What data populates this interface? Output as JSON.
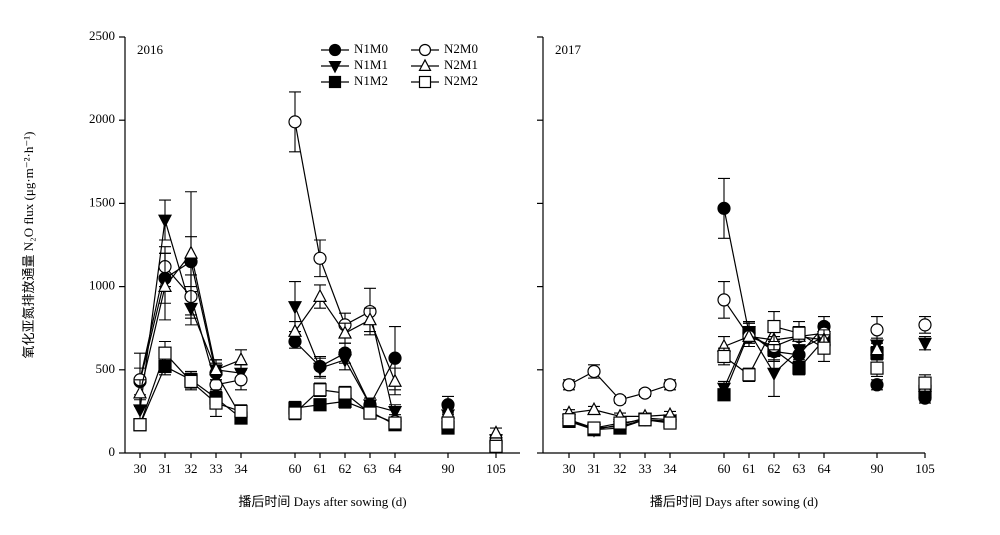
{
  "chart_data": [
    {
      "type": "line",
      "title": "2016",
      "x_label": "播后时间 Days after sowing (d)",
      "y_label": "氧化亚氮排放通量 N₂O flux (μg·m⁻²·h⁻¹)",
      "categories": [
        "30",
        "31",
        "32",
        "33",
        "34",
        "60",
        "61",
        "62",
        "63",
        "64",
        "90",
        "105"
      ],
      "ylim": [
        0,
        2500
      ],
      "yticks": [
        0,
        500,
        1000,
        1500,
        2000,
        2500
      ],
      "legend": "top",
      "series": [
        {
          "name": "N1M0",
          "color": "#000",
          "marker": "circle",
          "filled": true,
          "values": [
            430,
            1050,
            1150,
            480,
            220,
            670,
            520,
            600,
            290,
            570,
            290,
            60
          ],
          "errors": [
            80,
            150,
            150,
            60,
            30,
            40,
            60,
            60,
            40,
            190,
            50,
            30
          ]
        },
        {
          "name": "N1M1",
          "color": "#000",
          "marker": "triangle-down",
          "filled": true,
          "values": [
            260,
            1400,
            870,
            500,
            480,
            880,
            510,
            560,
            290,
            250,
            230,
            80
          ],
          "errors": [
            60,
            120,
            100,
            60,
            50,
            150,
            60,
            60,
            40,
            40,
            40,
            30
          ]
        },
        {
          "name": "N1M2",
          "color": "#000",
          "marker": "square",
          "filled": true,
          "values": [
            170,
            520,
            440,
            330,
            210,
            270,
            290,
            310,
            250,
            170,
            150,
            40
          ],
          "errors": [
            30,
            50,
            50,
            40,
            30,
            40,
            30,
            40,
            30,
            30,
            30,
            20
          ]
        },
        {
          "name": "N2M0",
          "color": "#000",
          "marker": "circle",
          "filled": false,
          "values": [
            440,
            1120,
            940,
            410,
            440,
            1990,
            1170,
            770,
            850,
            190,
            190,
            70
          ],
          "errors": [
            160,
            120,
            130,
            60,
            60,
            180,
            110,
            70,
            140,
            40,
            40,
            30
          ]
        },
        {
          "name": "N2M1",
          "color": "#000",
          "marker": "triangle-up",
          "filled": false,
          "values": [
            360,
            1000,
            1200,
            500,
            560,
            730,
            940,
            720,
            800,
            430,
            240,
            120
          ],
          "errors": [
            80,
            200,
            370,
            60,
            60,
            60,
            70,
            60,
            70,
            80,
            50,
            30
          ]
        },
        {
          "name": "N2M2",
          "color": "#000",
          "marker": "square",
          "filled": false,
          "values": [
            170,
            600,
            430,
            300,
            250,
            240,
            380,
            360,
            240,
            180,
            180,
            40
          ],
          "errors": [
            30,
            70,
            50,
            80,
            40,
            40,
            40,
            40,
            30,
            30,
            30,
            20
          ]
        }
      ]
    },
    {
      "type": "line",
      "title": "2017",
      "x_label": "播后时间 Days after sowing (d)",
      "categories": [
        "30",
        "31",
        "32",
        "33",
        "34",
        "60",
        "61",
        "62",
        "63",
        "64",
        "90",
        "105"
      ],
      "ylim": [
        0,
        2500
      ],
      "yticks": [
        0,
        500,
        1000,
        1500,
        2000,
        2500
      ],
      "series": [
        {
          "color": "#000",
          "marker": "circle",
          "filled": true,
          "values": [
            190,
            150,
            160,
            200,
            190,
            1470,
            720,
            610,
            590,
            760,
            410,
            330
          ],
          "errors": [
            20,
            20,
            20,
            20,
            20,
            180,
            60,
            60,
            60,
            60,
            30,
            30
          ]
        },
        {
          "color": "#000",
          "marker": "triangle-down",
          "filled": true,
          "values": [
            200,
            140,
            170,
            210,
            200,
            390,
            730,
            480,
            620,
            700,
            650,
            660
          ],
          "errors": [
            20,
            20,
            20,
            20,
            20,
            40,
            60,
            140,
            60,
            60,
            40,
            40
          ]
        },
        {
          "color": "#000",
          "marker": "square",
          "filled": true,
          "values": [
            190,
            140,
            150,
            200,
            190,
            350,
            720,
            620,
            510,
            680,
            600,
            370
          ],
          "errors": [
            20,
            20,
            20,
            20,
            20,
            30,
            60,
            60,
            40,
            60,
            40,
            30
          ]
        },
        {
          "color": "#000",
          "marker": "circle",
          "filled": false,
          "values": [
            410,
            490,
            320,
            360,
            410,
            920,
            700,
            640,
            700,
            720,
            740,
            770
          ],
          "errors": [
            30,
            40,
            20,
            20,
            30,
            110,
            60,
            60,
            60,
            60,
            80,
            50
          ]
        },
        {
          "color": "#000",
          "marker": "triangle-up",
          "filled": false,
          "values": [
            240,
            260,
            220,
            220,
            230,
            640,
            700,
            680,
            700,
            680,
            620,
            400
          ],
          "errors": [
            20,
            20,
            20,
            20,
            20,
            60,
            60,
            60,
            60,
            60,
            40,
            30
          ]
        },
        {
          "color": "#000",
          "marker": "square",
          "filled": false,
          "values": [
            200,
            150,
            180,
            200,
            180,
            580,
            470,
            760,
            720,
            630,
            510,
            420
          ],
          "errors": [
            20,
            20,
            20,
            20,
            20,
            50,
            40,
            90,
            70,
            80,
            50,
            50
          ]
        }
      ]
    }
  ]
}
